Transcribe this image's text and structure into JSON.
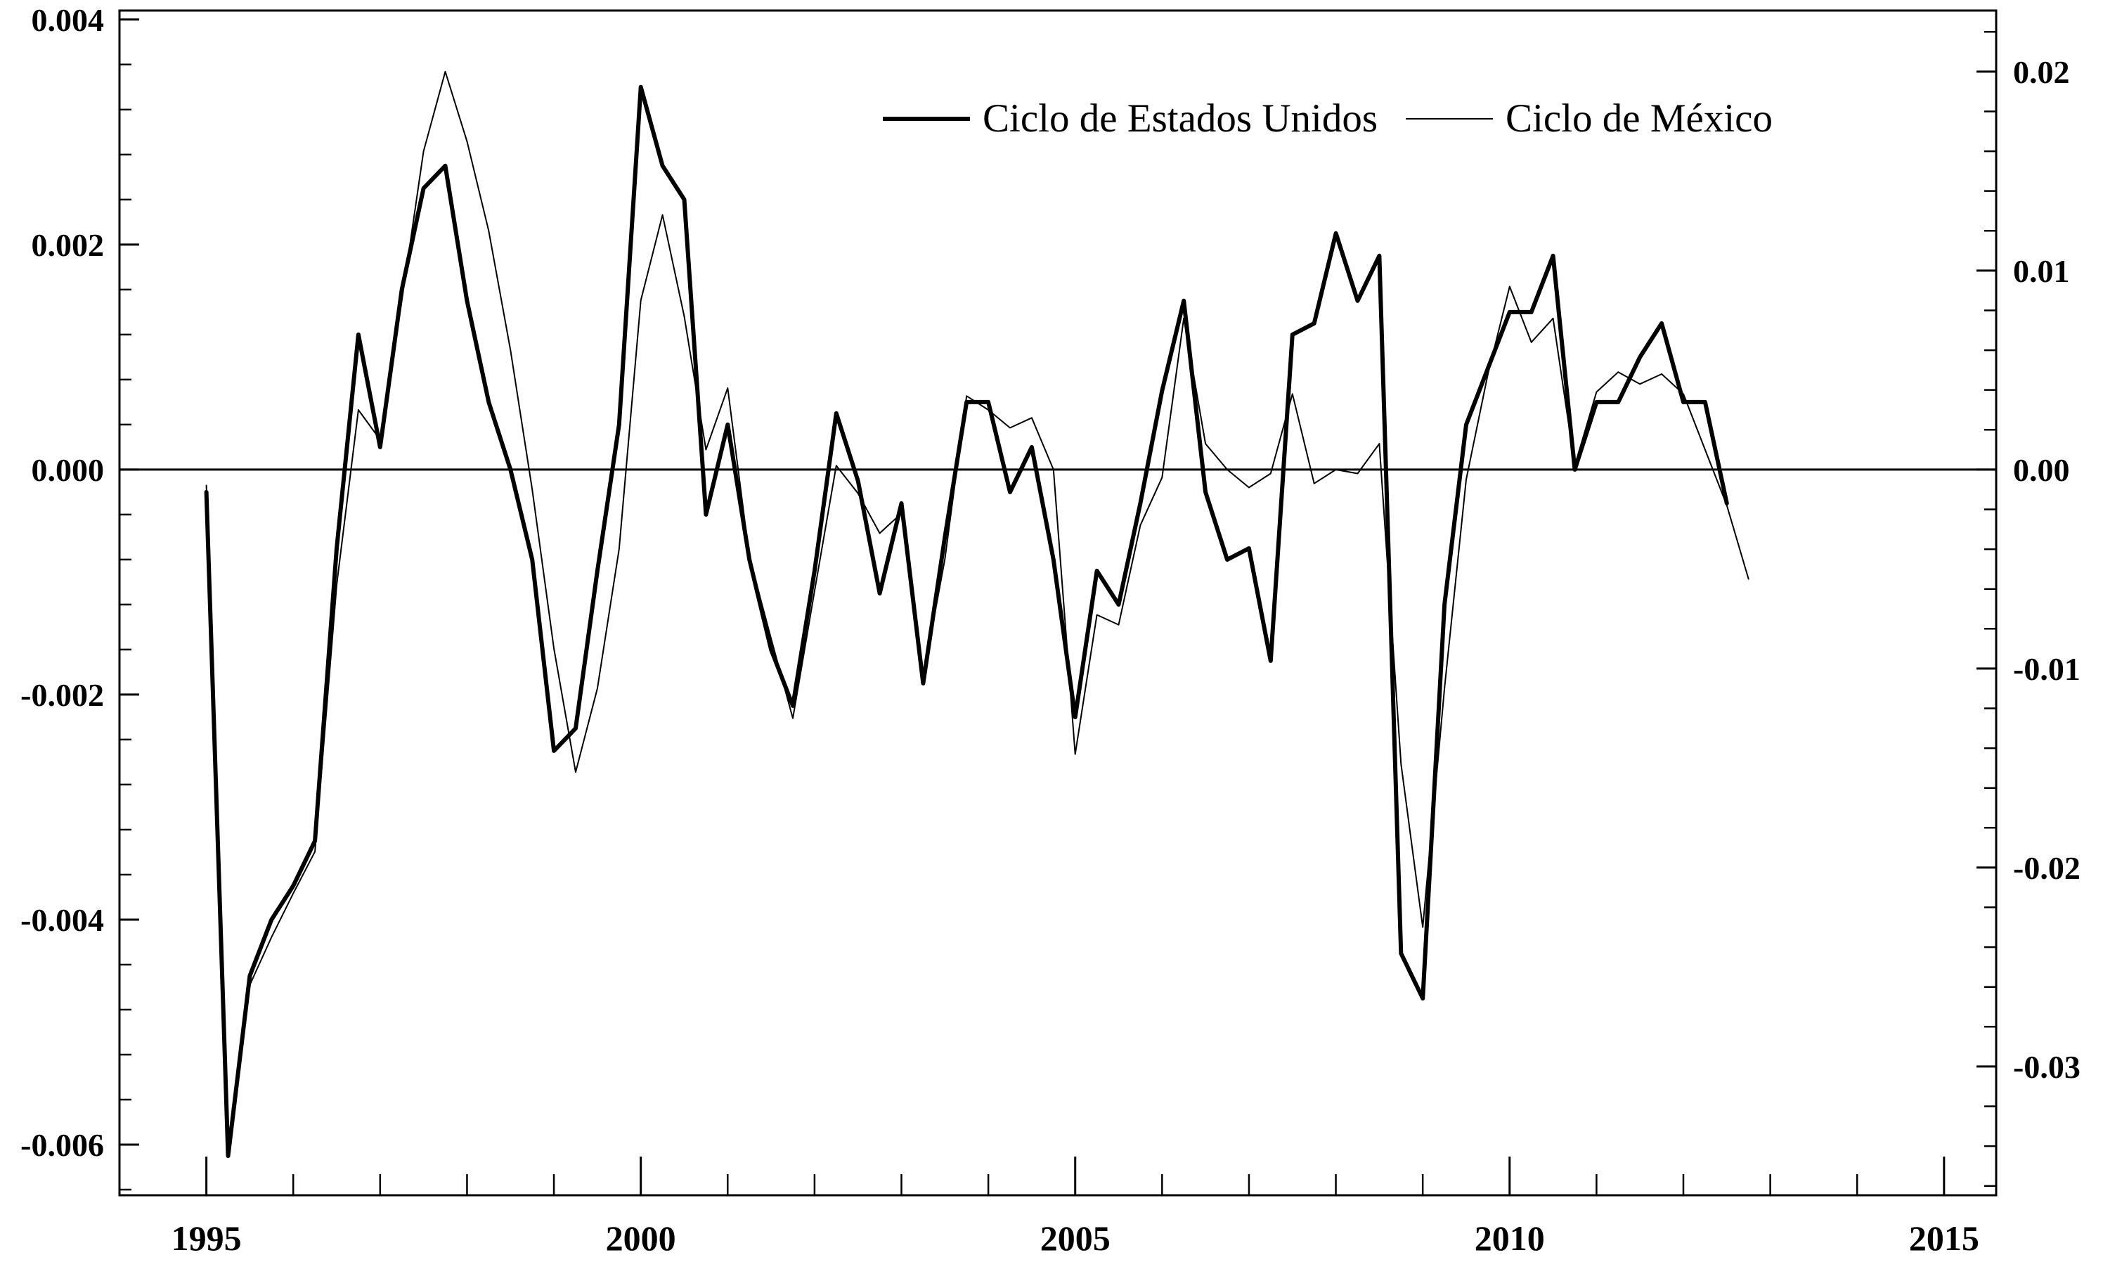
{
  "figure": {
    "background": "#ffffff",
    "ink_color": "#000000"
  },
  "chart_data": {
    "type": "line",
    "title": "",
    "grid": false,
    "zero_line": true,
    "legend_position": "top-center",
    "quarters": [
      "1995Q1",
      "1995Q2",
      "1995Q3",
      "1995Q4",
      "1996Q1",
      "1996Q2",
      "1996Q3",
      "1996Q4",
      "1997Q1",
      "1997Q2",
      "1997Q3",
      "1997Q4",
      "1998Q1",
      "1998Q2",
      "1998Q3",
      "1998Q4",
      "1999Q1",
      "1999Q2",
      "1999Q3",
      "1999Q4",
      "2000Q1",
      "2000Q2",
      "2000Q3",
      "2000Q4",
      "2001Q1",
      "2001Q2",
      "2001Q3",
      "2001Q4",
      "2002Q1",
      "2002Q2",
      "2002Q3",
      "2002Q4",
      "2003Q1",
      "2003Q2",
      "2003Q3",
      "2003Q4",
      "2004Q1",
      "2004Q2",
      "2004Q3",
      "2004Q4",
      "2005Q1",
      "2005Q2",
      "2005Q3",
      "2005Q4",
      "2006Q1",
      "2006Q2",
      "2006Q3",
      "2006Q4",
      "2007Q1",
      "2007Q2",
      "2007Q3",
      "2007Q4",
      "2008Q1",
      "2008Q2",
      "2008Q3",
      "2008Q4",
      "2009Q1",
      "2009Q2",
      "2009Q3",
      "2009Q4",
      "2010Q1",
      "2010Q2",
      "2010Q3",
      "2010Q4",
      "2011Q1",
      "2011Q2",
      "2011Q3",
      "2011Q4",
      "2012Q1",
      "2012Q2",
      "2012Q3",
      "2012Q4"
    ],
    "x_axis": {
      "min": 1994.0,
      "max": 2015.6,
      "start_year": 1995,
      "frequency_per_year": 4,
      "major_ticks": [
        1995,
        2000,
        2005,
        2010,
        2015
      ],
      "minor_tick_step_years": 1
    },
    "left_axis": {
      "min": -0.00645,
      "max": 0.00408,
      "major_ticks": [
        0.004,
        0.002,
        0.0,
        -0.002,
        -0.004,
        -0.006
      ],
      "minor_tick_step": 0.0004,
      "decimals": 3
    },
    "right_axis": {
      "min": -0.03647,
      "max": 0.02307,
      "major_ticks": [
        0.02,
        0.01,
        0.0,
        -0.01,
        -0.02,
        -0.03
      ],
      "minor_tick_step": 0.002,
      "decimals": 2
    },
    "series": [
      {
        "name": "Ciclo de Estados Unidos",
        "axis": "left",
        "stroke_width": 6,
        "values": [
          -0.0002,
          -0.0061,
          -0.0045,
          -0.004,
          -0.0037,
          -0.0033,
          -0.0007,
          0.0012,
          0.0002,
          0.0016,
          0.0025,
          0.0027,
          0.0015,
          0.0006,
          0.0,
          -0.0008,
          -0.0025,
          -0.0023,
          -0.0009,
          0.0004,
          0.0034,
          0.0027,
          0.0024,
          -0.0004,
          0.0004,
          -0.0008,
          -0.0016,
          -0.0021,
          -0.0009,
          0.0005,
          -0.0001,
          -0.0011,
          -0.0003,
          -0.0019,
          -0.0006,
          0.0006,
          0.0006,
          -0.0002,
          0.0002,
          -0.0008,
          -0.0022,
          -0.0009,
          -0.0012,
          -0.0003,
          0.0007,
          0.0015,
          -0.0002,
          -0.0008,
          -0.0007,
          -0.0017,
          0.0012,
          0.0013,
          0.0021,
          0.0015,
          0.0019,
          -0.0043,
          -0.0047,
          -0.0012,
          0.0004,
          0.0009,
          0.0014,
          0.0014,
          0.0019,
          0.0,
          0.0006,
          0.0006,
          0.001,
          0.0013,
          0.0006,
          0.0006,
          -0.0003,
          null
        ]
      },
      {
        "name": "Ciclo de México",
        "axis": "right",
        "stroke_width": 2,
        "values": [
          -0.0008,
          -0.0339,
          -0.0259,
          -0.0235,
          -0.0213,
          -0.0192,
          -0.0058,
          0.003,
          0.0015,
          0.0085,
          0.016,
          0.02,
          0.0165,
          0.012,
          0.006,
          -0.001,
          -0.009,
          -0.0152,
          -0.011,
          -0.004,
          0.0085,
          0.0128,
          0.0077,
          0.001,
          0.0041,
          -0.0044,
          -0.0085,
          -0.0125,
          -0.0061,
          0.0002,
          -0.0012,
          -0.0032,
          -0.0022,
          -0.0104,
          -0.0045,
          0.0037,
          0.003,
          0.0021,
          0.0026,
          0.0,
          -0.0143,
          -0.0073,
          -0.0078,
          -0.0028,
          -0.0004,
          0.0076,
          0.0013,
          0.0,
          -0.0009,
          -0.0002,
          0.0038,
          -0.0007,
          0.0,
          -0.0002,
          0.0013,
          -0.0148,
          -0.023,
          -0.011,
          -0.0005,
          0.0048,
          0.0092,
          0.0064,
          0.0076,
          0.0002,
          0.0039,
          0.0049,
          0.0043,
          0.0048,
          0.0038,
          0.001,
          -0.0018,
          -0.0055
        ]
      }
    ]
  }
}
